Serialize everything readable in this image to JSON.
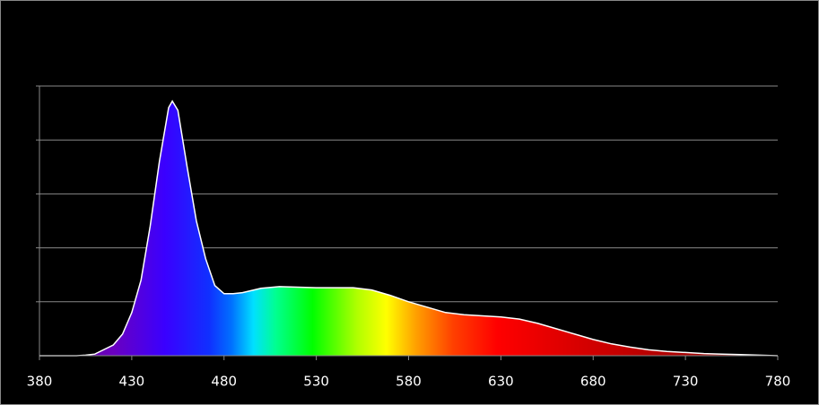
{
  "chart_data": {
    "type": "area",
    "x": [
      380,
      400,
      405,
      410,
      420,
      425,
      430,
      435,
      440,
      445,
      450,
      452,
      455,
      460,
      465,
      470,
      475,
      480,
      485,
      490,
      500,
      510,
      520,
      530,
      540,
      550,
      560,
      570,
      580,
      590,
      600,
      610,
      620,
      630,
      640,
      650,
      660,
      670,
      680,
      690,
      700,
      710,
      720,
      730,
      740,
      750,
      760,
      770,
      780
    ],
    "values": [
      0,
      0,
      0.01,
      0.03,
      0.2,
      0.4,
      0.8,
      1.4,
      2.4,
      3.6,
      4.6,
      4.72,
      4.55,
      3.5,
      2.5,
      1.8,
      1.3,
      1.15,
      1.15,
      1.17,
      1.25,
      1.28,
      1.27,
      1.26,
      1.26,
      1.26,
      1.22,
      1.12,
      1.0,
      0.9,
      0.8,
      0.76,
      0.74,
      0.72,
      0.68,
      0.6,
      0.5,
      0.4,
      0.3,
      0.22,
      0.16,
      0.11,
      0.08,
      0.06,
      0.04,
      0.03,
      0.02,
      0.01,
      0
    ],
    "line_color": "#ffffff",
    "xlim": [
      380,
      780
    ],
    "xticks": [
      380,
      430,
      480,
      530,
      580,
      630,
      680,
      730,
      780
    ],
    "ylim": [
      0,
      5
    ],
    "ygrid": [
      1,
      2,
      3,
      4,
      5
    ],
    "grid": true
  }
}
